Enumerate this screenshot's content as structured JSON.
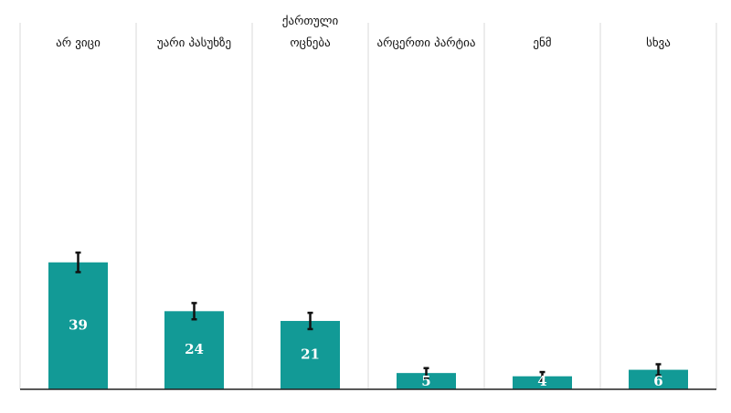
{
  "chart_data": {
    "type": "bar",
    "categories": [
      "არ ვიცი",
      "უარი პასუხზე",
      "ქართული\nოცნება",
      "არცერთი პარტია",
      "ენმ",
      "სხვა"
    ],
    "values": [
      39,
      24,
      21,
      5,
      4,
      6
    ],
    "errors": [
      3,
      2.5,
      2.5,
      1.5,
      1.3,
      1.7
    ],
    "color": "#129a96"
  }
}
